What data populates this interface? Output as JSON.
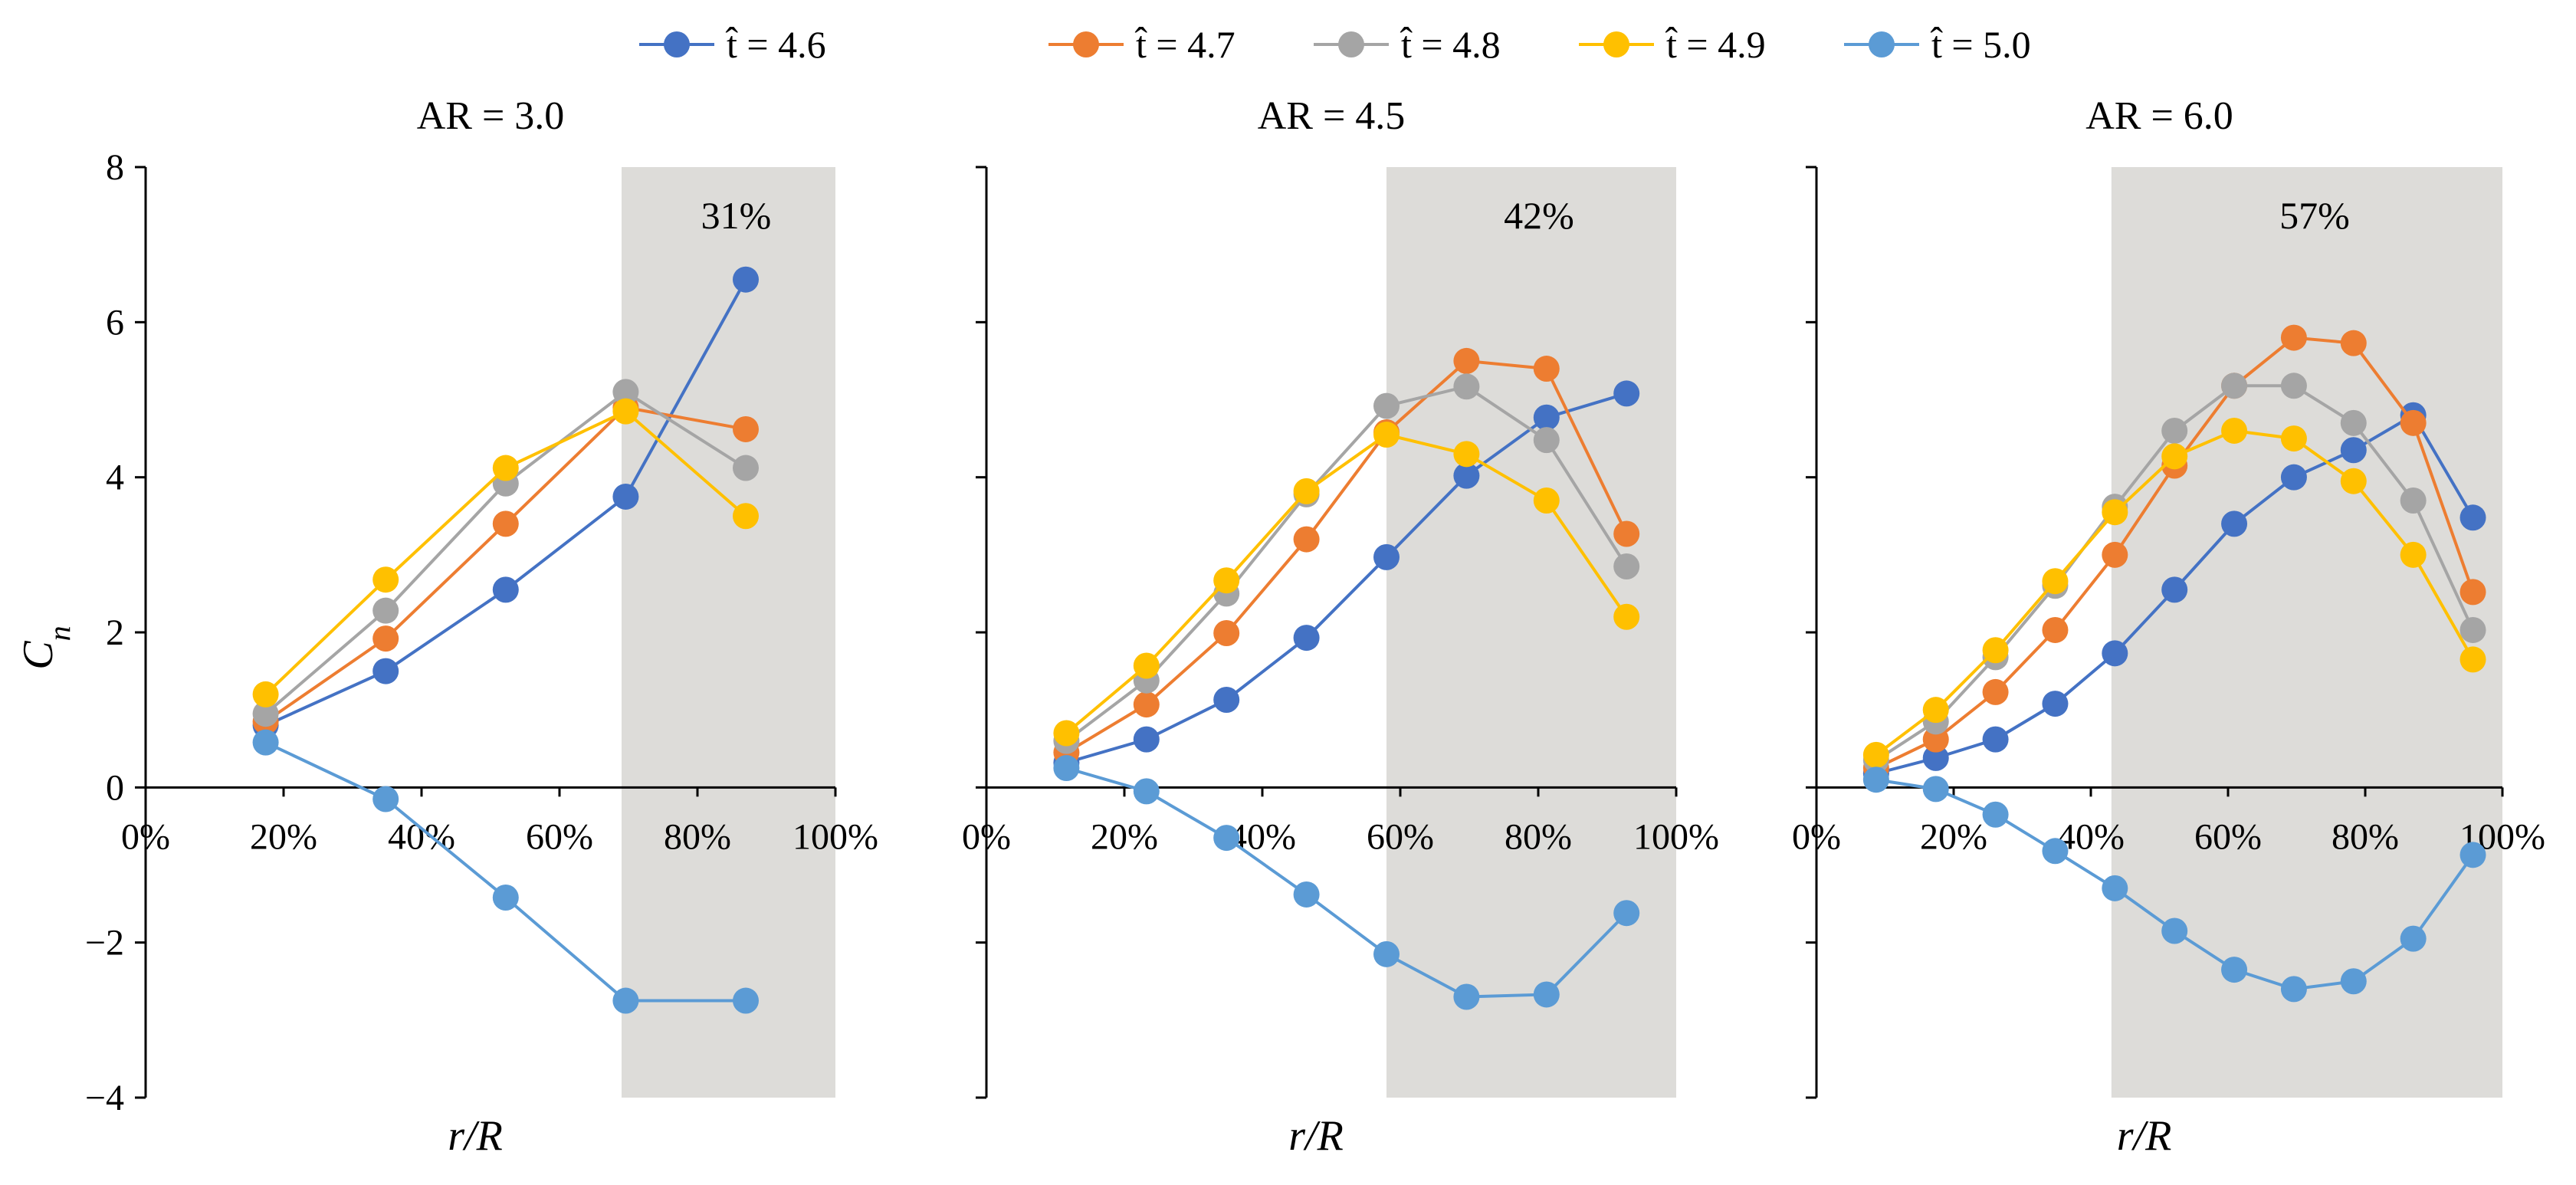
{
  "chart_data": {
    "type": "line",
    "legend": [
      "t̂ = 4.6",
      "t̂ = 4.7",
      "t̂ = 4.8",
      "t̂ = 4.9",
      "t̂ = 5.0"
    ],
    "legend_placement": "top-center",
    "colors": [
      "#4472C4",
      "#ED7D31",
      "#A5A5A5",
      "#FFC000",
      "#5B9BD5"
    ],
    "shade_color": "#DDDCD9",
    "ylabel": "C_n",
    "ylim": [
      -4,
      8
    ],
    "yticks": [
      "8",
      "6",
      "4",
      "2",
      "0",
      "−2",
      "−4"
    ],
    "ytick_values": [
      8,
      6,
      4,
      2,
      0,
      -2,
      -4
    ],
    "xlim": [
      0,
      100
    ],
    "xticks": [
      "0%",
      "20%",
      "40%",
      "60%",
      "80%",
      "100%"
    ],
    "xtick_values": [
      0,
      20,
      40,
      60,
      80,
      100
    ],
    "xlabel": "r/R",
    "panels": [
      {
        "title": "AR = 3.0",
        "shade_range": [
          69,
          100
        ],
        "shade_label": "31%",
        "x": [
          17.4,
          34.8,
          52.2,
          69.6,
          87.0
        ],
        "series": [
          {
            "name": "t=4.6",
            "values": [
              0.8,
              1.5,
              2.55,
              3.75,
              6.55
            ]
          },
          {
            "name": "t=4.7",
            "values": [
              0.85,
              1.92,
              3.4,
              4.9,
              4.62
            ]
          },
          {
            "name": "t=4.8",
            "values": [
              0.95,
              2.28,
              3.92,
              5.1,
              4.12
            ]
          },
          {
            "name": "t=4.9",
            "values": [
              1.2,
              2.68,
              4.12,
              4.85,
              3.5
            ]
          },
          {
            "name": "t=5.0",
            "values": [
              0.58,
              -0.15,
              -1.42,
              -2.75,
              -2.75
            ]
          }
        ]
      },
      {
        "title": "AR = 4.5",
        "shade_range": [
          58,
          100
        ],
        "shade_label": "42%",
        "x": [
          11.6,
          23.2,
          34.8,
          46.4,
          58.0,
          69.6,
          81.2,
          92.8
        ],
        "series": [
          {
            "name": "t=4.6",
            "values": [
              0.32,
              0.62,
              1.13,
              1.93,
              2.97,
              4.02,
              4.77,
              5.08
            ]
          },
          {
            "name": "t=4.7",
            "values": [
              0.45,
              1.07,
              1.99,
              3.2,
              4.58,
              5.5,
              5.4,
              3.27
            ]
          },
          {
            "name": "t=4.8",
            "values": [
              0.6,
              1.38,
              2.5,
              3.78,
              4.92,
              5.17,
              4.48,
              2.85
            ]
          },
          {
            "name": "t=4.9",
            "values": [
              0.7,
              1.57,
              2.67,
              3.82,
              4.55,
              4.3,
              3.7,
              2.2
            ]
          },
          {
            "name": "t=5.0",
            "values": [
              0.25,
              -0.05,
              -0.65,
              -1.38,
              -2.15,
              -2.7,
              -2.67,
              -1.62
            ]
          }
        ]
      },
      {
        "title": "AR = 6.0",
        "shade_range": [
          43,
          100
        ],
        "shade_label": "57%",
        "x": [
          8.7,
          17.4,
          26.1,
          34.8,
          43.5,
          52.2,
          60.9,
          69.6,
          78.3,
          87.0,
          95.7
        ],
        "series": [
          {
            "name": "t=4.6",
            "values": [
              0.18,
              0.38,
              0.62,
              1.08,
              1.73,
              2.55,
              3.4,
              4.0,
              4.35,
              4.8,
              3.48
            ]
          },
          {
            "name": "t=4.7",
            "values": [
              0.25,
              0.62,
              1.23,
              2.03,
              3.0,
              4.15,
              5.18,
              5.8,
              5.73,
              4.7,
              2.52
            ]
          },
          {
            "name": "t=4.8",
            "values": [
              0.35,
              0.85,
              1.68,
              2.6,
              3.62,
              4.6,
              5.18,
              5.18,
              4.7,
              3.7,
              2.03
            ]
          },
          {
            "name": "t=4.9",
            "values": [
              0.42,
              1.0,
              1.77,
              2.66,
              3.55,
              4.27,
              4.6,
              4.5,
              3.95,
              3.0,
              1.65
            ]
          },
          {
            "name": "t=5.0",
            "values": [
              0.1,
              -0.02,
              -0.35,
              -0.82,
              -1.3,
              -1.85,
              -2.35,
              -2.6,
              -2.5,
              -1.95,
              -0.87
            ]
          }
        ]
      }
    ]
  }
}
